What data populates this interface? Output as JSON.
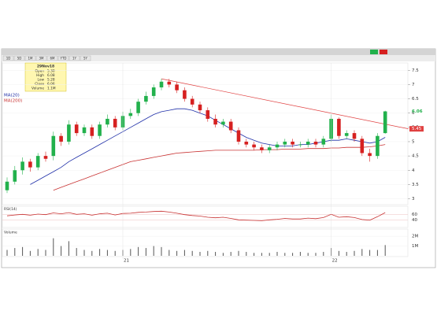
{
  "toolbar": [
    "1D",
    "5D",
    "1M",
    "3M",
    "6M",
    "YTD",
    "1Y",
    "5Y"
  ],
  "info": {
    "date": "29Nov18",
    "rows": [
      [
        "Open",
        "5.30"
      ],
      [
        "High",
        "6.08"
      ],
      [
        "Low",
        "5.28"
      ],
      [
        "Close",
        "6.06"
      ],
      [
        "Volume",
        "1.1M"
      ]
    ]
  },
  "chart_data": {
    "type": "candlestick",
    "date_labels": [
      {
        "index": 15,
        "label": "21"
      },
      {
        "index": 42,
        "label": "22"
      }
    ],
    "open": [
      3.3,
      3.6,
      4.0,
      4.3,
      4.1,
      4.5,
      4.5,
      5.2,
      5.0,
      5.6,
      5.3,
      5.5,
      5.2,
      5.6,
      5.8,
      5.5,
      5.9,
      6.0,
      6.4,
      6.6,
      6.9,
      7.1,
      7.0,
      6.8,
      6.5,
      6.3,
      6.1,
      5.8,
      5.6,
      5.7,
      5.4,
      5.0,
      4.9,
      4.8,
      4.7,
      4.8,
      4.9,
      5.0,
      4.9,
      4.9,
      5.0,
      4.9,
      5.1,
      5.8,
      5.2,
      5.3,
      5.1,
      4.6,
      4.5,
      5.3
    ],
    "high": [
      3.75,
      4.15,
      4.45,
      4.4,
      4.6,
      4.65,
      5.35,
      5.3,
      5.75,
      5.7,
      5.6,
      5.6,
      5.7,
      5.95,
      5.9,
      6.05,
      6.15,
      6.5,
      6.75,
      7.0,
      7.2,
      7.2,
      7.1,
      6.9,
      6.6,
      6.4,
      6.2,
      5.95,
      5.8,
      5.8,
      5.5,
      5.1,
      5.0,
      4.9,
      4.9,
      5.0,
      5.1,
      5.1,
      5.0,
      5.1,
      5.1,
      5.2,
      5.95,
      5.85,
      5.4,
      5.4,
      5.2,
      4.75,
      5.3,
      6.08
    ],
    "low": [
      3.2,
      3.5,
      3.85,
      3.95,
      4.0,
      4.3,
      4.35,
      4.85,
      4.9,
      5.2,
      5.2,
      5.1,
      5.1,
      5.5,
      5.4,
      5.4,
      5.8,
      5.9,
      6.3,
      6.5,
      6.8,
      6.9,
      6.7,
      6.4,
      6.2,
      6.0,
      5.7,
      5.5,
      5.5,
      5.3,
      4.9,
      4.8,
      4.7,
      4.6,
      4.6,
      4.7,
      4.8,
      4.8,
      4.8,
      4.8,
      4.8,
      4.8,
      5.0,
      5.1,
      5.1,
      5.0,
      4.5,
      4.3,
      4.4,
      5.28
    ],
    "close": [
      3.6,
      4.0,
      4.3,
      4.1,
      4.5,
      4.4,
      5.2,
      5.0,
      5.6,
      5.3,
      5.5,
      5.2,
      5.6,
      5.8,
      5.5,
      5.9,
      6.0,
      6.4,
      6.6,
      6.9,
      7.1,
      7.0,
      6.8,
      6.5,
      6.3,
      6.1,
      5.8,
      5.6,
      5.7,
      5.4,
      5.0,
      4.9,
      4.8,
      4.7,
      4.8,
      4.9,
      5.0,
      4.9,
      4.9,
      5.0,
      4.9,
      5.1,
      5.8,
      5.2,
      5.3,
      5.1,
      4.6,
      4.5,
      5.2,
      6.06
    ],
    "up_color": "#22b14c",
    "down_color": "#d62020",
    "series": [
      {
        "name": "MA(20)",
        "color": "#1f2fa8",
        "values": [
          null,
          null,
          null,
          3.5,
          3.65,
          3.8,
          3.95,
          4.1,
          4.3,
          4.45,
          4.6,
          4.75,
          4.9,
          5.05,
          5.2,
          5.35,
          5.5,
          5.65,
          5.8,
          5.95,
          6.05,
          6.1,
          6.15,
          6.15,
          6.1,
          6.0,
          5.9,
          5.75,
          5.6,
          5.45,
          5.3,
          5.15,
          5.05,
          4.95,
          4.9,
          4.85,
          4.85,
          4.85,
          4.9,
          4.9,
          4.95,
          5.0,
          5.05,
          5.05,
          5.1,
          5.05,
          5.0,
          4.95,
          5.0,
          5.15
        ]
      },
      {
        "name": "MA(200)",
        "color": "#c83232",
        "values": [
          null,
          null,
          null,
          null,
          null,
          null,
          3.3,
          3.4,
          3.5,
          3.6,
          3.7,
          3.8,
          3.9,
          4.0,
          4.1,
          4.2,
          4.3,
          4.35,
          4.4,
          4.45,
          4.5,
          4.55,
          4.6,
          4.62,
          4.64,
          4.66,
          4.68,
          4.7,
          4.7,
          4.7,
          4.7,
          4.7,
          4.7,
          4.72,
          4.72,
          4.72,
          4.74,
          4.74,
          4.74,
          4.76,
          4.76,
          4.76,
          4.78,
          4.78,
          4.8,
          4.8,
          4.8,
          4.82,
          4.85,
          4.9
        ]
      }
    ],
    "trendline": {
      "x": [
        20,
        52
      ],
      "values": [
        7.2,
        5.45
      ],
      "color": "#e04040"
    },
    "ylim": [
      2.85,
      7.7
    ],
    "yticks": [
      3,
      3.5,
      4,
      4.5,
      5,
      5.5,
      6,
      6.5,
      7,
      7.5
    ],
    "rsi": {
      "name": "RSI(14)",
      "color": "#c83232",
      "ylim": [
        20,
        80
      ],
      "yticks": [
        40,
        60
      ],
      "values": [
        55,
        58,
        60,
        57,
        61,
        59,
        65,
        62,
        66,
        60,
        62,
        57,
        62,
        64,
        58,
        63,
        64,
        67,
        68,
        70,
        71,
        68,
        64,
        59,
        56,
        54,
        50,
        48,
        50,
        46,
        41,
        40,
        39,
        38,
        41,
        43,
        46,
        44,
        44,
        47,
        45,
        49,
        60,
        50,
        52,
        49,
        42,
        40,
        52,
        66
      ]
    },
    "volume": {
      "name": "Volume",
      "color": "#555555",
      "ylim": [
        0,
        2.5
      ],
      "yticks": [
        {
          "value": 1,
          "label": "1M"
        },
        {
          "value": 2,
          "label": "2M"
        }
      ],
      "values": [
        0.6,
        0.8,
        0.9,
        0.5,
        0.7,
        0.6,
        1.8,
        1.0,
        1.5,
        0.8,
        0.6,
        0.5,
        0.7,
        0.6,
        0.5,
        0.6,
        0.7,
        0.9,
        0.8,
        1.0,
        0.9,
        0.6,
        0.5,
        0.6,
        0.5,
        0.4,
        0.5,
        0.4,
        0.3,
        0.4,
        0.5,
        0.4,
        0.3,
        0.3,
        0.3,
        0.4,
        0.3,
        0.3,
        0.4,
        0.3,
        0.3,
        0.4,
        0.8,
        0.5,
        0.4,
        0.5,
        0.7,
        0.6,
        0.6,
        1.1
      ]
    }
  }
}
